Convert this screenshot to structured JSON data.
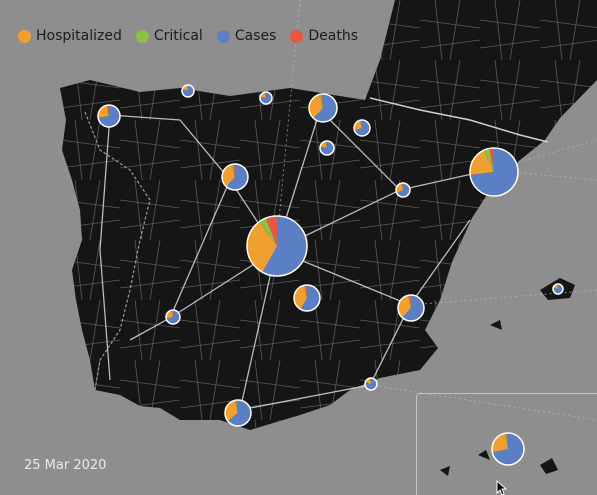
{
  "legend": [
    {
      "label": "Hospitalized",
      "color": "#f0a030",
      "icon": "orange-dot-icon"
    },
    {
      "label": "Critical",
      "color": "#8fc043",
      "icon": "green-dot-icon"
    },
    {
      "label": "Cases",
      "color": "#5b7fc4",
      "icon": "blue-dot-icon"
    },
    {
      "label": "Deaths",
      "color": "#e8583e",
      "icon": "red-dot-icon"
    }
  ],
  "date": "25 Mar 2020",
  "colors": {
    "sea": "#8e8e8e",
    "land": "#151515",
    "roads": "#d8d8d8"
  },
  "chart_data": {
    "type": "pie-map",
    "title": "",
    "series_order": [
      "Cases",
      "Hospitalized",
      "Critical",
      "Deaths"
    ],
    "regions": [
      {
        "id": "galicia",
        "fractions": [
          0.72,
          0.24,
          0.02,
          0.02
        ]
      },
      {
        "id": "asturias",
        "fractions": [
          0.8,
          0.17,
          0.02,
          0.01
        ]
      },
      {
        "id": "cantabria",
        "fractions": [
          0.78,
          0.19,
          0.02,
          0.01
        ]
      },
      {
        "id": "pais-vasco",
        "fractions": [
          0.62,
          0.33,
          0.03,
          0.02
        ]
      },
      {
        "id": "navarra",
        "fractions": [
          0.7,
          0.26,
          0.02,
          0.02
        ]
      },
      {
        "id": "la-rioja",
        "fractions": [
          0.78,
          0.18,
          0.02,
          0.02
        ]
      },
      {
        "id": "castilla-y-leon",
        "fractions": [
          0.62,
          0.33,
          0.03,
          0.02
        ]
      },
      {
        "id": "aragon",
        "fractions": [
          0.68,
          0.28,
          0.02,
          0.02
        ]
      },
      {
        "id": "cataluna",
        "fractions": [
          0.73,
          0.2,
          0.04,
          0.03
        ]
      },
      {
        "id": "madrid",
        "fractions": [
          0.58,
          0.32,
          0.04,
          0.06
        ]
      },
      {
        "id": "castilla-la-mancha",
        "fractions": [
          0.58,
          0.38,
          0.02,
          0.02
        ]
      },
      {
        "id": "extremadura",
        "fractions": [
          0.72,
          0.24,
          0.02,
          0.02
        ]
      },
      {
        "id": "comunidad-valenciana",
        "fractions": [
          0.62,
          0.34,
          0.02,
          0.02
        ]
      },
      {
        "id": "baleares",
        "fractions": [
          0.8,
          0.17,
          0.02,
          0.01
        ]
      },
      {
        "id": "murcia",
        "fractions": [
          0.8,
          0.17,
          0.02,
          0.01
        ]
      },
      {
        "id": "andalucia",
        "fractions": [
          0.64,
          0.32,
          0.02,
          0.02
        ]
      },
      {
        "id": "canarias",
        "fractions": [
          0.72,
          0.24,
          0.02,
          0.02
        ]
      }
    ]
  }
}
